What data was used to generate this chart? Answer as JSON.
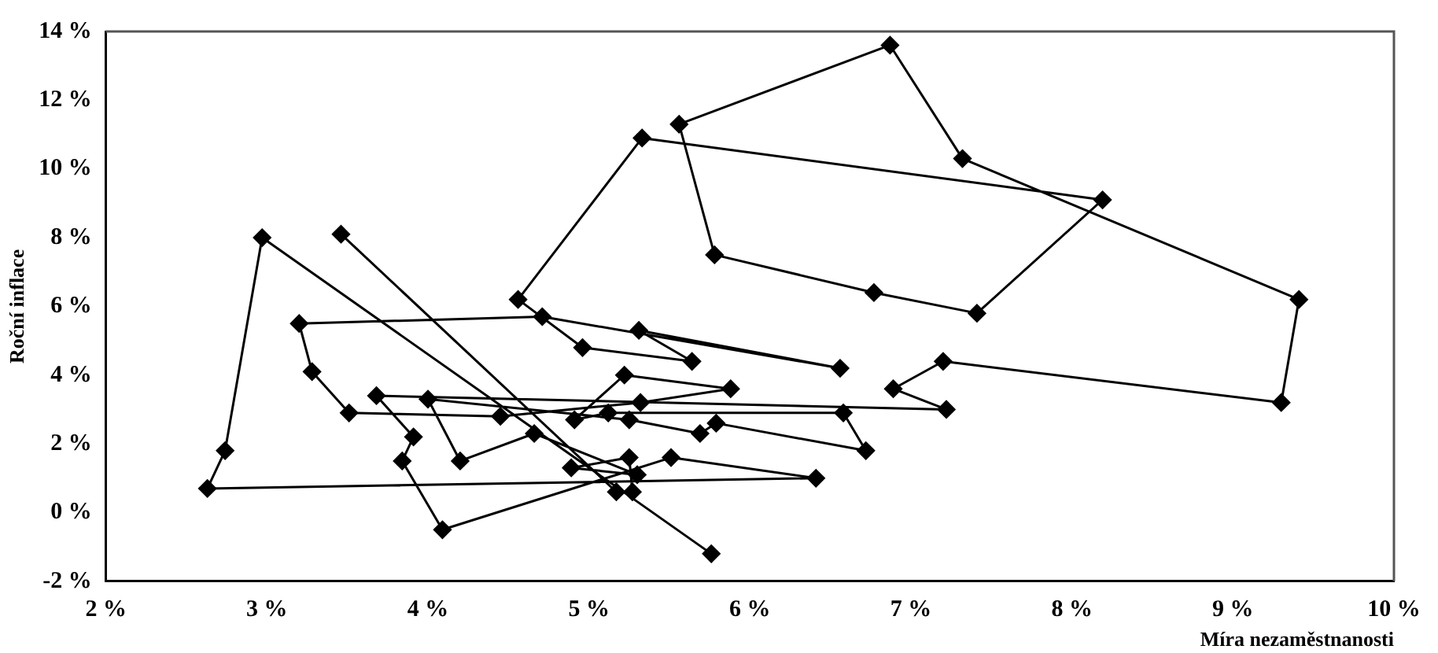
{
  "chart_data": {
    "type": "line",
    "xlabel": "Míra nezaměstnanosti",
    "ylabel": "Roční inflace",
    "marker": "diamond",
    "line_style": "solid",
    "grid": false,
    "legend": false,
    "xlim": [
      2,
      10
    ],
    "ylim": [
      -2,
      14
    ],
    "xticks": [
      {
        "value": 2,
        "label": "2 %"
      },
      {
        "value": 3,
        "label": "3 %"
      },
      {
        "value": 4,
        "label": "4 %"
      },
      {
        "value": 5,
        "label": "5 %"
      },
      {
        "value": 6,
        "label": "6 %"
      },
      {
        "value": 7,
        "label": "7 %"
      },
      {
        "value": 8,
        "label": "8 %"
      },
      {
        "value": 9,
        "label": "9 %"
      },
      {
        "value": 10,
        "label": "10 %"
      }
    ],
    "yticks": [
      {
        "value": -2,
        "label": "-2 %"
      },
      {
        "value": 0,
        "label": "0 %"
      },
      {
        "value": 2,
        "label": "2 %"
      },
      {
        "value": 4,
        "label": "4 %"
      },
      {
        "value": 6,
        "label": "6 %"
      },
      {
        "value": 8,
        "label": "8 %"
      },
      {
        "value": 10,
        "label": "10 %"
      },
      {
        "value": 12,
        "label": "12 %"
      },
      {
        "value": 14,
        "label": "14 %"
      }
    ],
    "series": [
      {
        "color": "#000000",
        "x": [
          5.76,
          2.97,
          2.74,
          2.63,
          6.41,
          5.51,
          4.09,
          3.84,
          3.91,
          3.68,
          7.22,
          6.89,
          7.2,
          9.3,
          9.41,
          7.32,
          6.87,
          5.56,
          5.78,
          6.77,
          7.41,
          8.19,
          5.33,
          4.56,
          4.96,
          5.64,
          5.31,
          6.56,
          4.71,
          3.2,
          3.28,
          3.51,
          4.45,
          5.32,
          5.88,
          5.22,
          4.91,
          5.12,
          6.58,
          6.72,
          5.79,
          5.69,
          5.25,
          4.0,
          4.2,
          4.66,
          5.3,
          4.89,
          5.25,
          5.27,
          5.17,
          3.46
        ],
        "values": [
          -1.2,
          8.0,
          1.8,
          0.7,
          1.0,
          1.6,
          -0.5,
          1.5,
          2.2,
          3.4,
          3.0,
          3.6,
          4.4,
          3.2,
          6.2,
          10.3,
          13.6,
          11.3,
          7.5,
          6.4,
          5.8,
          9.1,
          10.9,
          6.2,
          4.8,
          4.4,
          5.3,
          4.2,
          5.7,
          5.5,
          4.1,
          2.9,
          2.8,
          3.2,
          3.6,
          4.0,
          2.7,
          2.9,
          2.9,
          1.8,
          2.6,
          2.3,
          2.7,
          3.3,
          1.5,
          2.3,
          1.1,
          1.3,
          1.6,
          0.6,
          0.6,
          8.1
        ]
      }
    ]
  }
}
